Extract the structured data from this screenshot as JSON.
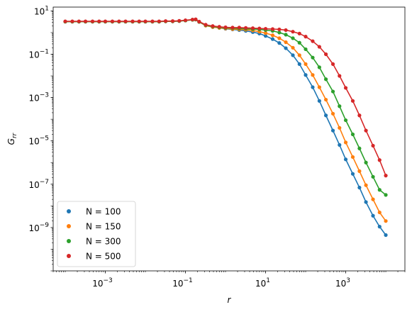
{
  "chart_data": {
    "type": "line",
    "title": "",
    "xlabel": "r",
    "ylabel": "G",
    "ylabel_sub": "rr",
    "x_scale": "log",
    "y_scale": "log",
    "xlim": [
      5e-05,
      30000
    ],
    "ylim": [
      1e-11,
      15
    ],
    "grid": false,
    "legend_position": "lower-left",
    "x_ticks": [
      {
        "value": 0.001,
        "base": "10",
        "exp": "−3"
      },
      {
        "value": 0.1,
        "base": "10",
        "exp": "−1"
      },
      {
        "value": 10,
        "base": "10",
        "exp": "1"
      },
      {
        "value": 1000,
        "base": "10",
        "exp": "3"
      }
    ],
    "y_ticks": [
      {
        "value": 1e-09,
        "base": "10",
        "exp": "−9"
      },
      {
        "value": 1e-07,
        "base": "10",
        "exp": "−7"
      },
      {
        "value": 1e-05,
        "base": "10",
        "exp": "−5"
      },
      {
        "value": 0.001,
        "base": "10",
        "exp": "−3"
      },
      {
        "value": 0.1,
        "base": "10",
        "exp": "−1"
      },
      {
        "value": 10,
        "base": "10",
        "exp": "1"
      }
    ],
    "x": [
      0.0001,
      0.00015,
      0.00022,
      0.00032,
      0.00048,
      0.0007,
      0.001,
      0.0015,
      0.0022,
      0.0032,
      0.0048,
      0.007,
      0.01,
      0.015,
      0.022,
      0.032,
      0.048,
      0.07,
      0.1,
      0.15,
      0.18,
      0.22,
      0.32,
      0.48,
      0.7,
      1,
      1.5,
      2.2,
      3.2,
      4.8,
      7,
      10,
      15,
      22,
      32,
      48,
      70,
      100,
      150,
      220,
      320,
      480,
      700,
      1000,
      1500,
      2200,
      3200,
      4800,
      7000,
      10000
    ],
    "series": [
      {
        "name": "N = 100",
        "color": "#1f77b4",
        "values": [
          3.2,
          3.2,
          3.2,
          3.2,
          3.2,
          3.2,
          3.2,
          3.2,
          3.2,
          3.2,
          3.2,
          3.2,
          3.2,
          3.2,
          3.2,
          3.3,
          3.3,
          3.4,
          3.6,
          3.9,
          4.0,
          3.1,
          2.1,
          1.8,
          1.65,
          1.5,
          1.4,
          1.3,
          1.2,
          1.05,
          0.9,
          0.7,
          0.5,
          0.33,
          0.19,
          0.09,
          0.035,
          0.011,
          0.003,
          0.0007,
          0.00015,
          3e-05,
          6.5e-06,
          1.4e-06,
          3e-07,
          7e-08,
          1.5e-08,
          3.5e-09,
          1.1e-09,
          4.5e-10
        ]
      },
      {
        "name": "N = 150",
        "color": "#ff7f0e",
        "values": [
          3.2,
          3.2,
          3.2,
          3.2,
          3.2,
          3.2,
          3.2,
          3.2,
          3.2,
          3.2,
          3.2,
          3.2,
          3.2,
          3.2,
          3.2,
          3.3,
          3.3,
          3.4,
          3.6,
          3.9,
          4.0,
          3.1,
          2.1,
          1.8,
          1.65,
          1.55,
          1.45,
          1.4,
          1.35,
          1.25,
          1.1,
          0.95,
          0.75,
          0.55,
          0.36,
          0.2,
          0.09,
          0.035,
          0.011,
          0.003,
          0.0008,
          0.00018,
          4e-05,
          8.5e-06,
          1.8e-06,
          4e-07,
          9e-08,
          2e-08,
          5e-09,
          2e-09
        ]
      },
      {
        "name": "N = 300",
        "color": "#2ca02c",
        "values": [
          3.2,
          3.2,
          3.2,
          3.2,
          3.2,
          3.2,
          3.2,
          3.2,
          3.2,
          3.2,
          3.2,
          3.2,
          3.2,
          3.2,
          3.2,
          3.3,
          3.3,
          3.4,
          3.6,
          3.9,
          4.0,
          3.1,
          2.2,
          1.9,
          1.75,
          1.65,
          1.6,
          1.55,
          1.5,
          1.45,
          1.4,
          1.3,
          1.2,
          1.0,
          0.8,
          0.55,
          0.34,
          0.17,
          0.07,
          0.025,
          0.007,
          0.0019,
          0.0004,
          9e-05,
          2e-05,
          4.5e-06,
          1e-06,
          2.2e-07,
          5.5e-08,
          3.2e-08
        ]
      },
      {
        "name": "N = 500",
        "color": "#d62728",
        "values": [
          3.3,
          3.3,
          3.3,
          3.3,
          3.3,
          3.3,
          3.3,
          3.3,
          3.3,
          3.3,
          3.3,
          3.3,
          3.3,
          3.3,
          3.3,
          3.4,
          3.4,
          3.5,
          3.7,
          4.0,
          4.1,
          3.2,
          2.3,
          2.0,
          1.85,
          1.75,
          1.7,
          1.7,
          1.65,
          1.6,
          1.55,
          1.5,
          1.45,
          1.4,
          1.3,
          1.1,
          0.9,
          0.65,
          0.4,
          0.22,
          0.1,
          0.035,
          0.01,
          0.0028,
          0.0007,
          0.00015,
          3e-05,
          6e-06,
          1.3e-06,
          2.5e-07
        ]
      }
    ]
  }
}
